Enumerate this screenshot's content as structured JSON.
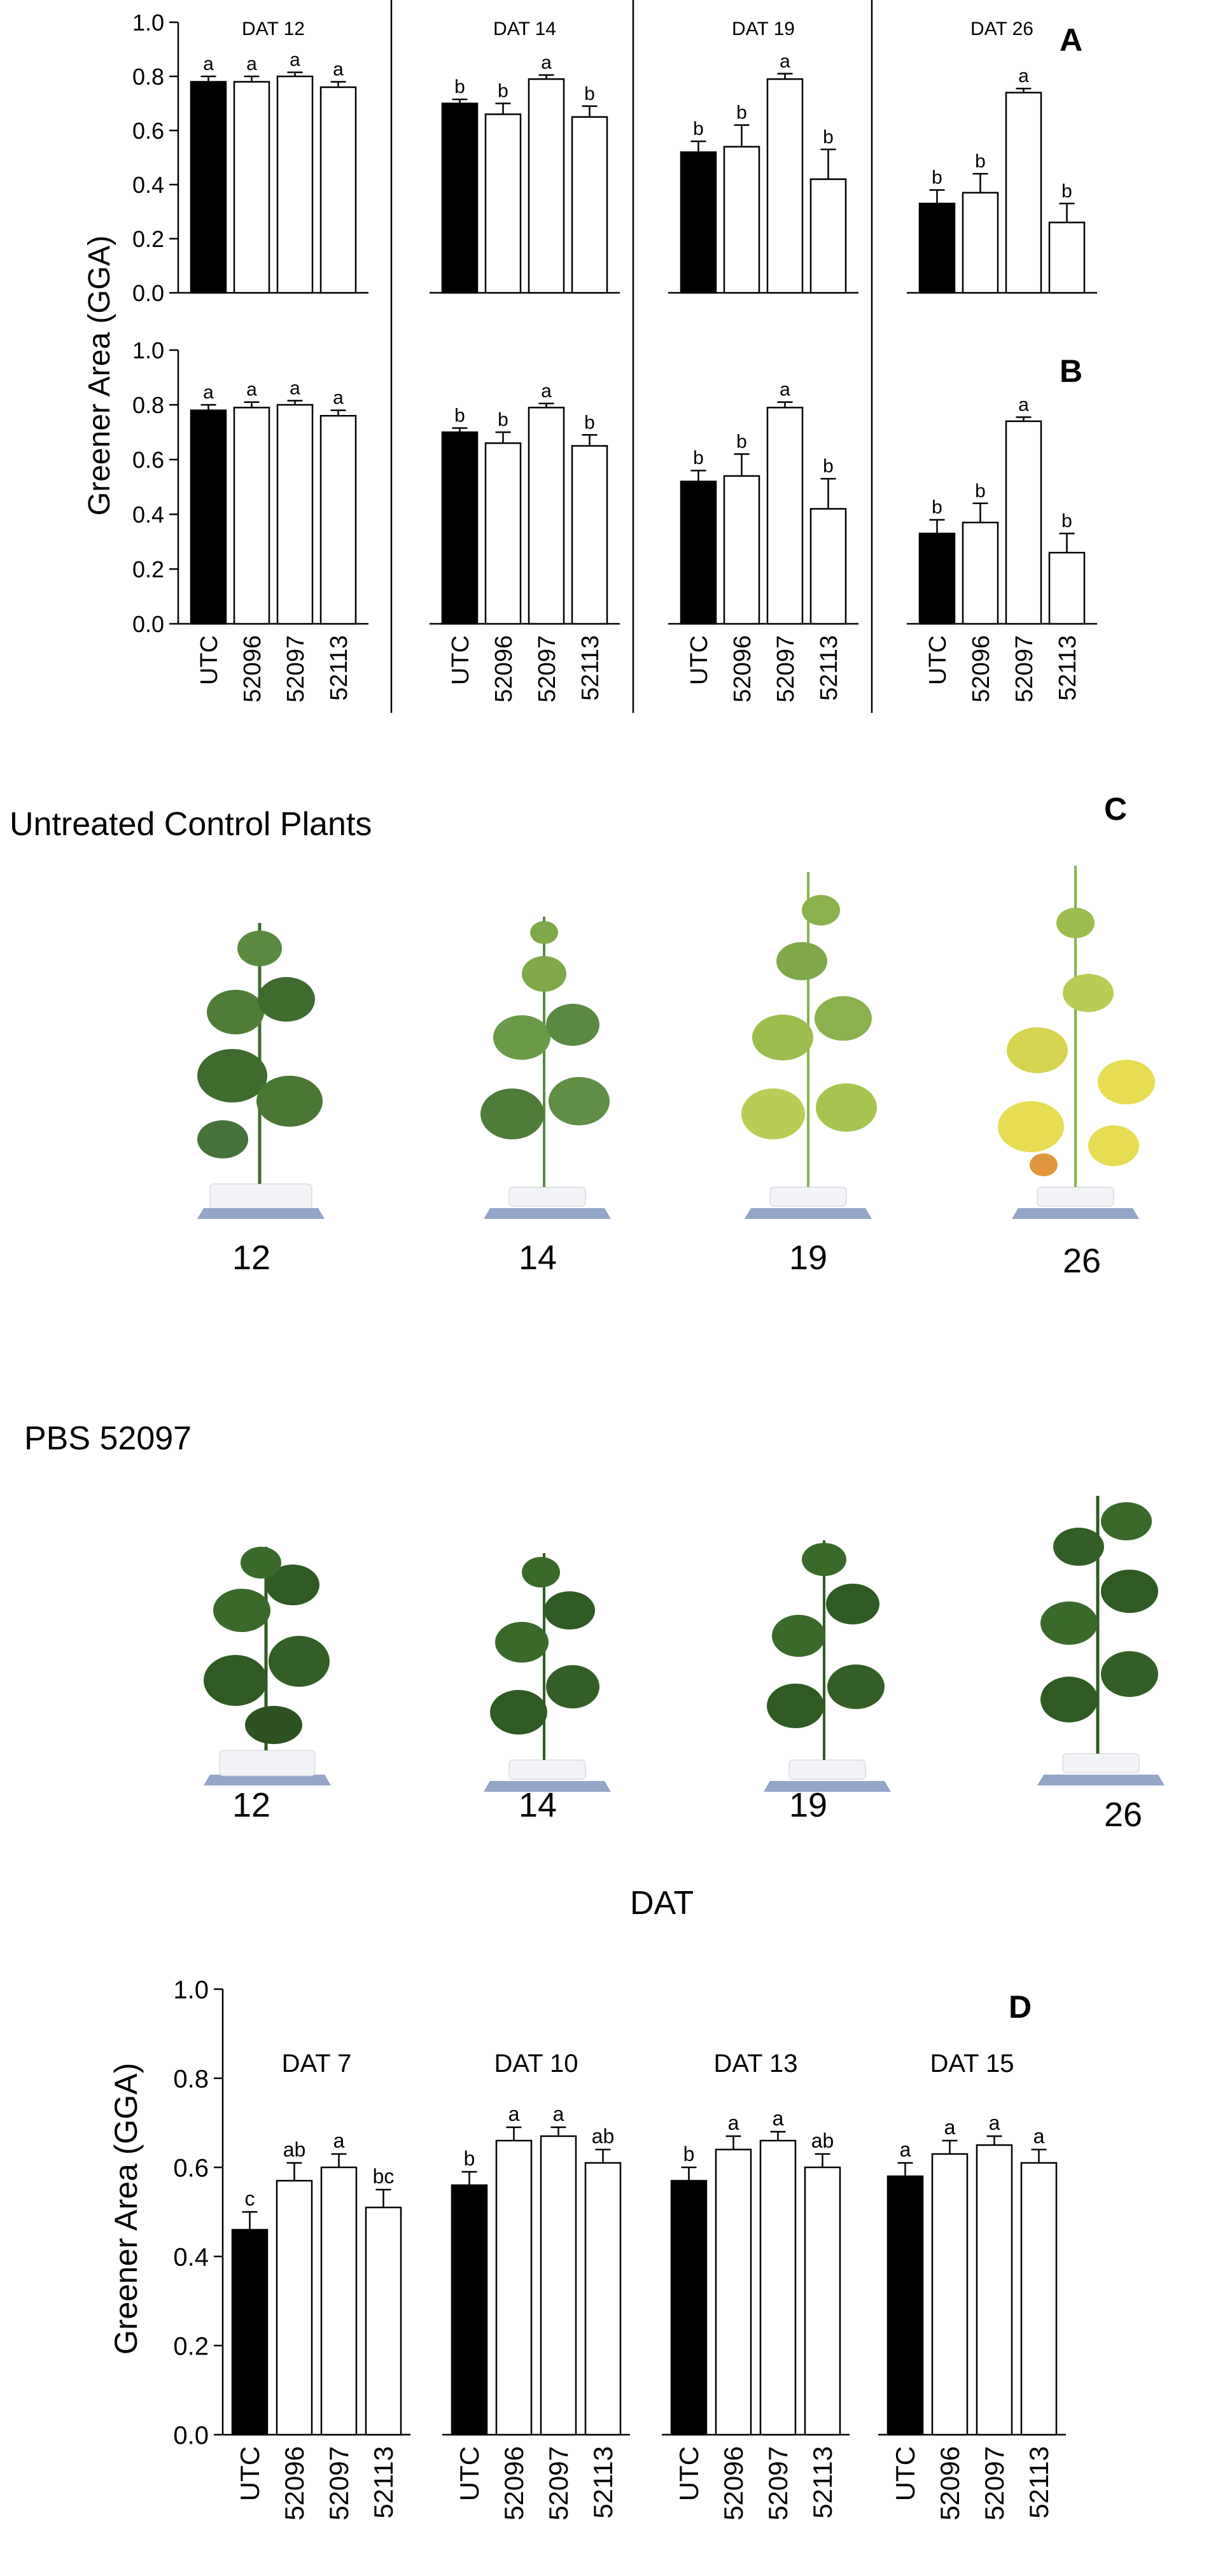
{
  "chart_data": [
    {
      "type": "bar",
      "panel": "A",
      "ylabel": "Greener Area (GGA)",
      "ylim": [
        0,
        1.0
      ],
      "yticks": [
        "0.0",
        "0.2",
        "0.4",
        "0.6",
        "0.8",
        "1.0"
      ],
      "categories": [
        "UTC",
        "52096",
        "52097",
        "52113"
      ],
      "groups": [
        {
          "title": "DAT 12",
          "values": [
            0.78,
            0.78,
            0.8,
            0.76
          ],
          "errors": [
            0.02,
            0.02,
            0.015,
            0.02
          ],
          "letters": [
            "a",
            "a",
            "a",
            "a"
          ]
        },
        {
          "title": "DAT 14",
          "values": [
            0.7,
            0.66,
            0.79,
            0.65
          ],
          "errors": [
            0.015,
            0.04,
            0.015,
            0.04
          ],
          "letters": [
            "b",
            "b",
            "a",
            "b"
          ]
        },
        {
          "title": "DAT 19",
          "values": [
            0.52,
            0.54,
            0.79,
            0.42
          ],
          "errors": [
            0.04,
            0.08,
            0.02,
            0.11
          ],
          "letters": [
            "b",
            "b",
            "a",
            "b"
          ]
        },
        {
          "title": "DAT 26",
          "values": [
            0.33,
            0.37,
            0.74,
            0.26
          ],
          "errors": [
            0.05,
            0.07,
            0.015,
            0.07
          ],
          "letters": [
            "b",
            "b",
            "a",
            "b"
          ]
        }
      ]
    },
    {
      "type": "bar",
      "panel": "B",
      "ylim": [
        0,
        1.0
      ],
      "yticks": [
        "0.0",
        "0.2",
        "0.4",
        "0.6",
        "0.8",
        "1.0"
      ],
      "categories": [
        "UTC",
        "52096",
        "52097",
        "52113"
      ],
      "groups": [
        {
          "title": "",
          "values": [
            0.78,
            0.79,
            0.8,
            0.76
          ],
          "errors": [
            0.02,
            0.02,
            0.015,
            0.02
          ],
          "letters": [
            "a",
            "a",
            "a",
            "a"
          ]
        },
        {
          "title": "",
          "values": [
            0.7,
            0.66,
            0.79,
            0.65
          ],
          "errors": [
            0.015,
            0.04,
            0.015,
            0.04
          ],
          "letters": [
            "b",
            "b",
            "a",
            "b"
          ]
        },
        {
          "title": "",
          "values": [
            0.52,
            0.54,
            0.79,
            0.42
          ],
          "errors": [
            0.04,
            0.08,
            0.02,
            0.11
          ],
          "letters": [
            "b",
            "b",
            "a",
            "b"
          ]
        },
        {
          "title": "",
          "values": [
            0.33,
            0.37,
            0.74,
            0.26
          ],
          "errors": [
            0.05,
            0.07,
            0.015,
            0.07
          ],
          "letters": [
            "b",
            "b",
            "a",
            "b"
          ]
        }
      ]
    },
    {
      "type": "bar",
      "panel": "D",
      "ylabel": "Greener Area (GGA)",
      "ylim": [
        0,
        1.0
      ],
      "yticks": [
        "0.0",
        "0.2",
        "0.4",
        "0.6",
        "0.8",
        "1.0"
      ],
      "categories": [
        "UTC",
        "52096",
        "52097",
        "52113"
      ],
      "groups": [
        {
          "title": "DAT 7",
          "values": [
            0.46,
            0.57,
            0.6,
            0.51
          ],
          "errors": [
            0.04,
            0.04,
            0.03,
            0.04
          ],
          "letters": [
            "c",
            "ab",
            "a",
            "bc"
          ]
        },
        {
          "title": "DAT 10",
          "values": [
            0.56,
            0.66,
            0.67,
            0.61
          ],
          "errors": [
            0.03,
            0.03,
            0.02,
            0.03
          ],
          "letters": [
            "b",
            "a",
            "a",
            "ab"
          ]
        },
        {
          "title": "DAT 13",
          "values": [
            0.57,
            0.64,
            0.66,
            0.6
          ],
          "errors": [
            0.03,
            0.03,
            0.02,
            0.03
          ],
          "letters": [
            "b",
            "a",
            "a",
            "ab"
          ]
        },
        {
          "title": "DAT 15",
          "values": [
            0.58,
            0.63,
            0.65,
            0.61
          ],
          "errors": [
            0.03,
            0.03,
            0.02,
            0.03
          ],
          "letters": [
            "a",
            "a",
            "a",
            "a"
          ]
        }
      ]
    }
  ],
  "panel_c": {
    "letter": "C",
    "untreated_title": "Untreated Control Plants",
    "treated_title": "PBS 52097",
    "days": [
      "12",
      "14",
      "19",
      "26"
    ],
    "xlabel": "DAT"
  },
  "colors": {
    "control_bar": "#000000",
    "treated_bar": "#ffffff",
    "leaf_dark": "#3f6b2e",
    "leaf_light": "#7fa84a",
    "leaf_pale": "#b9cc55",
    "leaf_yellow": "#e6dd52",
    "pot": "#f1f3f6",
    "base": "#93a5c8"
  }
}
